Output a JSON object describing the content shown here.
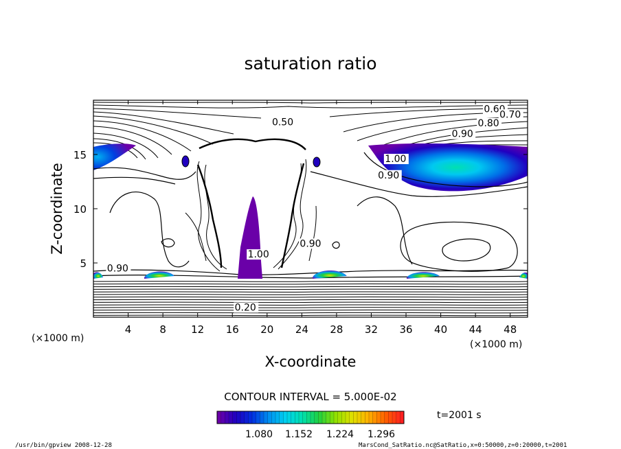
{
  "chart_data": {
    "type": "contour",
    "title": "saturation ratio",
    "xlabel": "X-coordinate",
    "ylabel": "Z-coordinate",
    "x_unit": "(×1000 m)",
    "y_unit": "(×1000 m)",
    "xlim": [
      0,
      50
    ],
    "ylim": [
      0,
      20
    ],
    "x_ticks": [
      4,
      8,
      12,
      16,
      20,
      24,
      28,
      32,
      36,
      40,
      44,
      48
    ],
    "y_ticks": [
      5,
      10,
      15
    ],
    "contour_interval_text": "CONTOUR INTERVAL = 5.000E-02",
    "contour_labels": [
      {
        "text": "0.60",
        "x": 46.2,
        "z": 18.9
      },
      {
        "text": "0.70",
        "x": 48.0,
        "z": 18.4
      },
      {
        "text": "0.80",
        "x": 45.5,
        "z": 17.6
      },
      {
        "text": "0.90",
        "x": 42.5,
        "z": 16.6
      },
      {
        "text": "0.50",
        "x": 21.8,
        "z": 17.7
      },
      {
        "text": "0.90",
        "x": 34.0,
        "z": 12.8
      },
      {
        "text": "1.00",
        "x": 34.8,
        "z": 14.3
      },
      {
        "text": "0.90",
        "x": 2.8,
        "z": 4.2
      },
      {
        "text": "0.90",
        "x": 25.0,
        "z": 6.5
      },
      {
        "text": "1.00",
        "x": 19.0,
        "z": 5.5
      },
      {
        "text": "0.20",
        "x": 17.5,
        "z": 0.6
      }
    ],
    "colorbar": {
      "ticks": [
        "1.080",
        "1.152",
        "1.224",
        "1.296"
      ],
      "colors": [
        "#6a00a8",
        "#2000c0",
        "#0030e0",
        "#0090f0",
        "#00d0f0",
        "#00e0b0",
        "#20d040",
        "#90e000",
        "#e0e000",
        "#ffb000",
        "#ff6000",
        "#ff2020"
      ]
    },
    "time_label": "t=2001 s",
    "grid": false
  },
  "footer": {
    "left": "/usr/bin/gpview   2008-12-28",
    "right": "MarsCond_SatRatio.nc@SatRatio,x=0:50000,z=0:20000,t=2001"
  }
}
